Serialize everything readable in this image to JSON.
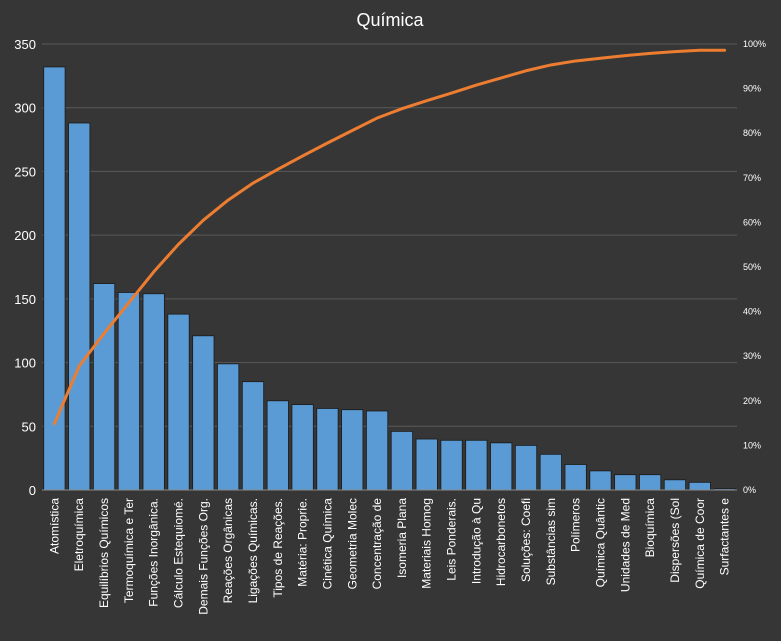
{
  "chart_data": {
    "type": "bar",
    "title": "Química",
    "xlabel": "",
    "ylabel": "",
    "ylim": [
      0,
      350
    ],
    "y_ticks": [
      0,
      50,
      100,
      150,
      200,
      250,
      300,
      350
    ],
    "y2lim": [
      0,
      100
    ],
    "y2_ticks": [
      "0%",
      "10%",
      "20%",
      "30%",
      "40%",
      "50%",
      "60%",
      "70%",
      "80%",
      "90%",
      "100%"
    ],
    "grid": true,
    "legend": "none",
    "colors": {
      "background": "#363636",
      "bar": "#5b9bd5",
      "bar_edge": "#1a1a1a",
      "line": "#ed7d31",
      "grid": "#5a5a5a",
      "text": "#ffffff"
    },
    "categories": [
      "Atomística",
      "Eletroquímica",
      "Equilíbrios Químicos",
      "Termoquímica e Ter",
      "Funções Inorgânica.",
      "Cálculo Estequiomé.",
      "Demais Funções Org.",
      "Reações Orgânicas",
      "Ligações Químicas.",
      "Tipos de Reações.",
      "Matéria: Proprie.",
      "Cinética Química",
      "Geometria Molec",
      "Concentração de",
      "Isomeria Plana",
      "Materiais Homog",
      "Leis Ponderais.",
      "Introdução à Qu",
      "Hidrocarbonetos",
      "Soluções: Coefi",
      "Substâncias sim",
      "Polímeros",
      "Química Quântic",
      "Unidades de Med",
      "Bioquímica",
      "Dispersões (Sol",
      "Química de Coor",
      "Surfactantes e"
    ],
    "series": [
      {
        "kind": "bar",
        "axis": "left",
        "values": [
          332,
          288,
          162,
          155,
          154,
          138,
          121,
          99,
          85,
          70,
          67,
          64,
          63,
          62,
          46,
          40,
          39,
          39,
          37,
          35,
          28,
          20,
          15,
          12,
          12,
          8,
          6,
          1
        ]
      },
      {
        "kind": "line",
        "axis": "right",
        "values": [
          14.9,
          27.8,
          35.1,
          42.0,
          48.9,
          55.1,
          60.5,
          65.0,
          68.8,
          71.9,
          74.9,
          77.8,
          80.6,
          83.4,
          85.5,
          87.3,
          89.0,
          90.8,
          92.4,
          94.0,
          95.3,
          96.2,
          96.8,
          97.4,
          97.9,
          98.3,
          98.6,
          98.6
        ]
      }
    ]
  }
}
